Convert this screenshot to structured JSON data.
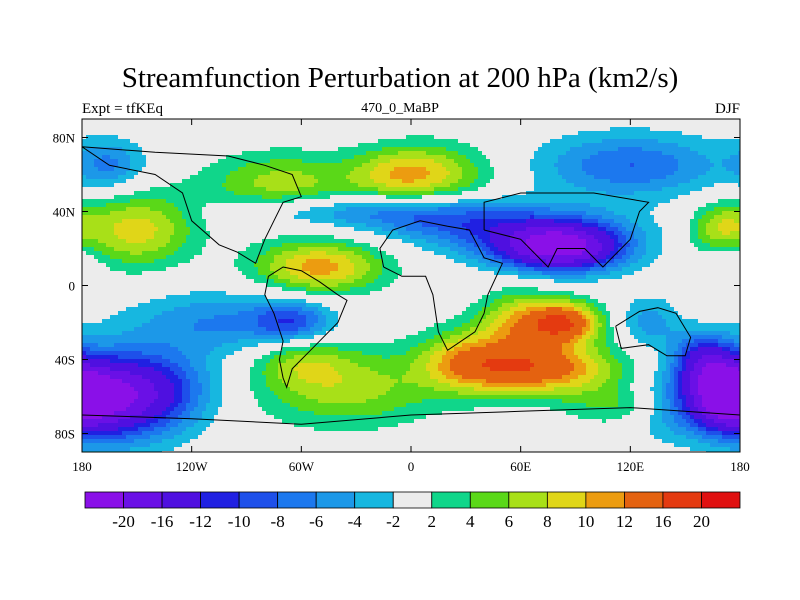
{
  "header": {
    "title": "Streamfunction Perturbation at 200 hPa (km2/s)",
    "left": "Expt = tfKEq",
    "center": "470_0_MaBP",
    "right": "DJF"
  },
  "chart_data": {
    "type": "heatmap",
    "title": "Streamfunction Perturbation at 200 hPa (km2/s)",
    "subtitle_left": "Expt = tfKEq",
    "subtitle_center": "470_0_MaBP",
    "subtitle_right": "DJF",
    "x_range": [
      -180,
      180
    ],
    "y_range": [
      -90,
      90
    ],
    "x_ticks": [
      {
        "value": -180,
        "label": "180"
      },
      {
        "value": -120,
        "label": "120W"
      },
      {
        "value": -60,
        "label": "60W"
      },
      {
        "value": 0,
        "label": "0"
      },
      {
        "value": 60,
        "label": "60E"
      },
      {
        "value": 120,
        "label": "120E"
      },
      {
        "value": 180,
        "label": "180"
      }
    ],
    "y_ticks": [
      {
        "value": 80,
        "label": "80N"
      },
      {
        "value": 40,
        "label": "40N"
      },
      {
        "value": 0,
        "label": "0"
      },
      {
        "value": -40,
        "label": "40S"
      },
      {
        "value": -80,
        "label": "80S"
      }
    ],
    "colorbar": {
      "levels": [
        -20,
        -16,
        -12,
        -10,
        -8,
        -6,
        -4,
        -2,
        2,
        4,
        6,
        8,
        10,
        12,
        16,
        20
      ],
      "labels": [
        "-20",
        "-16",
        "-12",
        "-10",
        "-8",
        "-6",
        "-4",
        "-2",
        "2",
        "4",
        "6",
        "8",
        "10",
        "12",
        "16",
        "20"
      ],
      "colors": [
        "#8a10e8",
        "#6a10e6",
        "#4f10e0",
        "#2020e2",
        "#1e50ea",
        "#1c78ee",
        "#1c98e8",
        "#17b7e0",
        "#ececec",
        "#10d68a",
        "#5ad818",
        "#a8e018",
        "#e0d618",
        "#ec9c10",
        "#e46210",
        "#e43a10",
        "#e01010"
      ]
    },
    "centers": [
      {
        "lon": -150,
        "lat": 30,
        "value": 9,
        "sx": 22,
        "sy": 14
      },
      {
        "lon": -50,
        "lat": 10,
        "value": 11,
        "sx": 25,
        "sy": 10
      },
      {
        "lon": -70,
        "lat": 55,
        "value": 7,
        "sx": 30,
        "sy": 12
      },
      {
        "lon": 15,
        "lat": 60,
        "value": 7,
        "sx": 22,
        "sy": 12
      },
      {
        "lon": -10,
        "lat": 60,
        "value": 6,
        "sx": 18,
        "sy": 10
      },
      {
        "lon": -50,
        "lat": 40,
        "value": -5,
        "sx": 35,
        "sy": 6
      },
      {
        "lon": 10,
        "lat": 38,
        "value": -6,
        "sx": 30,
        "sy": 8
      },
      {
        "lon": 60,
        "lat": 30,
        "value": -8,
        "sx": 40,
        "sy": 10
      },
      {
        "lon": 82,
        "lat": 20,
        "value": -20,
        "sx": 24,
        "sy": 9
      },
      {
        "lon": 120,
        "lat": 65,
        "value": -8,
        "sx": 35,
        "sy": 12
      },
      {
        "lon": -165,
        "lat": 65,
        "value": -6,
        "sx": 14,
        "sy": 10
      },
      {
        "lon": 170,
        "lat": 30,
        "value": 8,
        "sx": 12,
        "sy": 10
      },
      {
        "lon": 175,
        "lat": 15,
        "value": -4,
        "sx": 10,
        "sy": 10
      },
      {
        "lon": -105,
        "lat": -20,
        "value": -6,
        "sx": 35,
        "sy": 12
      },
      {
        "lon": -65,
        "lat": -20,
        "value": -8,
        "sx": 15,
        "sy": 8
      },
      {
        "lon": -165,
        "lat": -60,
        "value": -20,
        "sx": 25,
        "sy": 16
      },
      {
        "lon": -130,
        "lat": -55,
        "value": -5,
        "sx": 20,
        "sy": 15
      },
      {
        "lon": 70,
        "lat": -45,
        "value": 14,
        "sx": 30,
        "sy": 10
      },
      {
        "lon": 85,
        "lat": -20,
        "value": 14,
        "sx": 14,
        "sy": 8
      },
      {
        "lon": 60,
        "lat": -20,
        "value": 9,
        "sx": 16,
        "sy": 12
      },
      {
        "lon": 30,
        "lat": -40,
        "value": 8,
        "sx": 18,
        "sy": 12
      },
      {
        "lon": -35,
        "lat": -55,
        "value": 7,
        "sx": 35,
        "sy": 15
      },
      {
        "lon": -60,
        "lat": -40,
        "value": 5,
        "sx": 18,
        "sy": 10
      },
      {
        "lon": 120,
        "lat": -65,
        "value": 5,
        "sx": 22,
        "sy": 8
      },
      {
        "lon": 160,
        "lat": -40,
        "value": -11,
        "sx": 12,
        "sy": 10
      },
      {
        "lon": 172,
        "lat": -60,
        "value": -16,
        "sx": 14,
        "sy": 12
      },
      {
        "lon": 140,
        "lat": -65,
        "value": -6,
        "sx": 16,
        "sy": 12
      },
      {
        "lon": 130,
        "lat": -20,
        "value": -5,
        "sx": 12,
        "sy": 10
      }
    ],
    "coastlines": [
      [
        [
          -70,
          -50
        ],
        [
          -72,
          -40
        ],
        [
          -70,
          -30
        ],
        [
          -75,
          -15
        ],
        [
          -80,
          -5
        ],
        [
          -78,
          5
        ],
        [
          -70,
          10
        ],
        [
          -60,
          8
        ],
        [
          -50,
          2
        ],
        [
          -40,
          -5
        ],
        [
          -35,
          -8
        ],
        [
          -40,
          -20
        ],
        [
          -48,
          -28
        ],
        [
          -55,
          -35
        ],
        [
          -65,
          -45
        ],
        [
          -68,
          -55
        ],
        [
          -70,
          -50
        ]
      ],
      [
        [
          -15,
          10
        ],
        [
          -17,
          20
        ],
        [
          -10,
          30
        ],
        [
          5,
          35
        ],
        [
          20,
          32
        ],
        [
          32,
          30
        ],
        [
          40,
          15
        ],
        [
          50,
          12
        ],
        [
          42,
          -5
        ],
        [
          40,
          -15
        ],
        [
          35,
          -25
        ],
        [
          20,
          -35
        ],
        [
          15,
          -25
        ],
        [
          12,
          -5
        ],
        [
          8,
          5
        ],
        [
          -5,
          5
        ],
        [
          -15,
          10
        ]
      ],
      [
        [
          112,
          -22
        ],
        [
          115,
          -34
        ],
        [
          130,
          -32
        ],
        [
          140,
          -38
        ],
        [
          150,
          -38
        ],
        [
          153,
          -28
        ],
        [
          145,
          -15
        ],
        [
          135,
          -12
        ],
        [
          125,
          -14
        ],
        [
          112,
          -22
        ]
      ],
      [
        [
          40,
          30
        ],
        [
          60,
          25
        ],
        [
          75,
          10
        ],
        [
          80,
          20
        ],
        [
          95,
          20
        ],
        [
          105,
          10
        ],
        [
          120,
          25
        ],
        [
          125,
          40
        ],
        [
          130,
          45
        ],
        [
          100,
          50
        ],
        [
          60,
          50
        ],
        [
          40,
          45
        ],
        [
          40,
          30
        ]
      ],
      [
        [
          -180,
          75
        ],
        [
          -165,
          65
        ],
        [
          -140,
          60
        ],
        [
          -125,
          50
        ],
        [
          -120,
          35
        ],
        [
          -105,
          22
        ],
        [
          -95,
          18
        ],
        [
          -85,
          12
        ],
        [
          -80,
          25
        ],
        [
          -75,
          35
        ],
        [
          -70,
          45
        ],
        [
          -60,
          48
        ],
        [
          -65,
          60
        ],
        [
          -80,
          65
        ],
        [
          -100,
          70
        ],
        [
          -140,
          72
        ],
        [
          -180,
          75
        ]
      ],
      [
        [
          -180,
          -70
        ],
        [
          -120,
          -72
        ],
        [
          -60,
          -75
        ],
        [
          0,
          -70
        ],
        [
          60,
          -68
        ],
        [
          120,
          -66
        ],
        [
          180,
          -70
        ]
      ]
    ]
  }
}
